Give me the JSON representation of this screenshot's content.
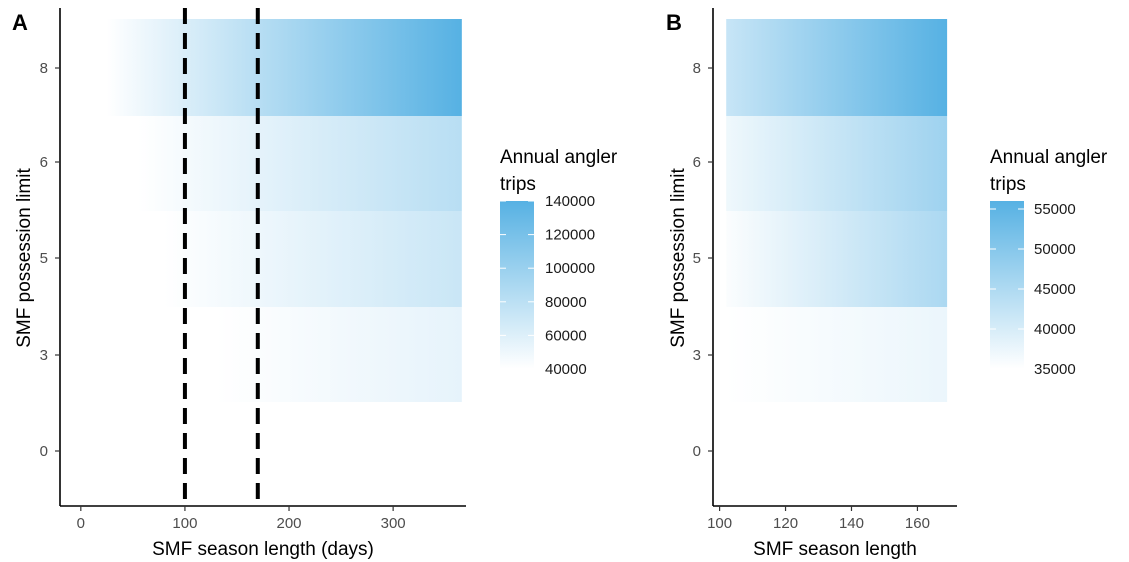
{
  "chart_data": [
    {
      "type": "heatmap",
      "panel_label": "A",
      "xlabel": "SMF season length (days)",
      "ylabel": "SMF possession limit",
      "xlim": [
        -20,
        370
      ],
      "ylim": [
        -1.5,
        9.5
      ],
      "x_ticks": [
        0,
        100,
        200,
        300
      ],
      "y_ticks": [
        0,
        3,
        5,
        6,
        8
      ],
      "reference_lines_x": [
        100,
        170
      ],
      "rows": [
        {
          "y": 3,
          "x_start": 130,
          "x_end": 366,
          "value_start": 40000,
          "value_end": 55000
        },
        {
          "y": 5,
          "x_start": 80,
          "x_end": 366,
          "value_start": 40000,
          "value_end": 72000
        },
        {
          "y": 6,
          "x_start": 55,
          "x_end": 366,
          "value_start": 40000,
          "value_end": 82000
        },
        {
          "y": 8,
          "x_start": 25,
          "x_end": 366,
          "value_start": 40000,
          "value_end": 140000
        }
      ],
      "legend": {
        "title": "Annual angler trips",
        "ticks": [
          140000,
          120000,
          100000,
          80000,
          60000,
          40000
        ],
        "range": [
          40000,
          140000
        ]
      }
    },
    {
      "type": "heatmap",
      "panel_label": "B",
      "xlabel": "SMF season length",
      "ylabel": "SMF possession limit",
      "xlim": [
        98,
        172
      ],
      "ylim": [
        -1.5,
        9.5
      ],
      "x_ticks": [
        100,
        120,
        140,
        160
      ],
      "y_ticks": [
        0,
        3,
        5,
        6,
        8
      ],
      "rows": [
        {
          "y": 3,
          "x_start": 102,
          "x_end": 169,
          "value_start": 35000,
          "value_end": 37500
        },
        {
          "y": 5,
          "x_start": 102,
          "x_end": 169,
          "value_start": 35500,
          "value_end": 45500
        },
        {
          "y": 6,
          "x_start": 102,
          "x_end": 169,
          "value_start": 37000,
          "value_end": 47000
        },
        {
          "y": 8,
          "x_start": 102,
          "x_end": 169,
          "value_start": 42000,
          "value_end": 56000
        }
      ],
      "legend": {
        "title": "Annual angler trips",
        "ticks": [
          55000,
          50000,
          45000,
          40000,
          35000
        ],
        "range": [
          35000,
          56000
        ]
      }
    }
  ],
  "colors": {
    "low": "#ffffff",
    "high": "#56b1e3",
    "axis": "#000000",
    "ref_line": "#000000"
  }
}
